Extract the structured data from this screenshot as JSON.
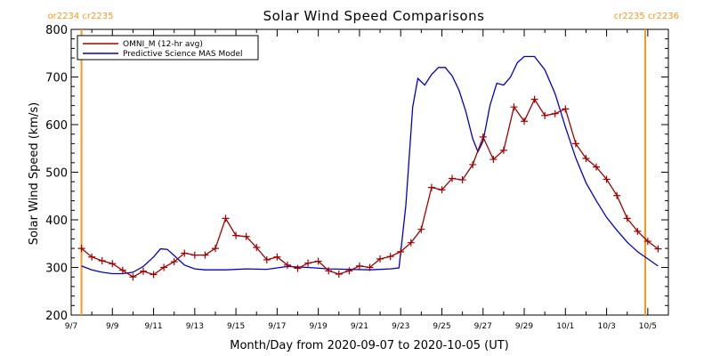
{
  "chart_data": {
    "type": "line",
    "title": "Solar Wind Speed Comparisons",
    "xlabel": "Month/Day from 2020-09-07 to 2020-10-05 (UT)",
    "ylabel": "Solar Wind Speed (km/s)",
    "xlim": [
      "2020-09-07",
      "2020-10-05"
    ],
    "ylim": [
      200,
      800
    ],
    "x_ticks": [
      {
        "date": "2020-09-07",
        "label": "9/7"
      },
      {
        "date": "2020-09-09",
        "label": "9/9"
      },
      {
        "date": "2020-09-11",
        "label": "9/11"
      },
      {
        "date": "2020-09-13",
        "label": "9/13"
      },
      {
        "date": "2020-09-15",
        "label": "9/15"
      },
      {
        "date": "2020-09-17",
        "label": "9/17"
      },
      {
        "date": "2020-09-19",
        "label": "9/19"
      },
      {
        "date": "2020-09-21",
        "label": "9/21"
      },
      {
        "date": "2020-09-23",
        "label": "9/23"
      },
      {
        "date": "2020-09-25",
        "label": "9/25"
      },
      {
        "date": "2020-09-27",
        "label": "9/27"
      },
      {
        "date": "2020-09-29",
        "label": "9/29"
      },
      {
        "date": "2020-10-01",
        "label": "10/1"
      },
      {
        "date": "2020-10-03",
        "label": "10/3"
      },
      {
        "date": "2020-10-05",
        "label": "10/5"
      }
    ],
    "y_ticks": [
      200,
      300,
      400,
      500,
      600,
      700,
      800
    ],
    "legend": {
      "position": "top-left"
    },
    "markers": [
      {
        "date": "2020-09-07 12:00",
        "left_label": "or2234",
        "right_label": "cr2235",
        "color": "#f39a1f"
      },
      {
        "date": "2020-10-04 21:00",
        "left_label": "cr2235",
        "right_label": "cr2236",
        "color": "#f39a1f"
      }
    ],
    "series": [
      {
        "name": "OMNI_M (12-hr avg)",
        "color": "#a00000",
        "marker": "plus",
        "points": [
          [
            "2020-09-07 12:00",
            340
          ],
          [
            "2020-09-08 00:00",
            322
          ],
          [
            "2020-09-08 12:00",
            314
          ],
          [
            "2020-09-09 00:00",
            308
          ],
          [
            "2020-09-09 12:00",
            294
          ],
          [
            "2020-09-10 00:00",
            280
          ],
          [
            "2020-09-10 12:00",
            292
          ],
          [
            "2020-09-11 00:00",
            285
          ],
          [
            "2020-09-11 12:00",
            300
          ],
          [
            "2020-09-12 00:00",
            312
          ],
          [
            "2020-09-12 12:00",
            330
          ],
          [
            "2020-09-13 00:00",
            326
          ],
          [
            "2020-09-13 12:00",
            326
          ],
          [
            "2020-09-14 00:00",
            340
          ],
          [
            "2020-09-14 12:00",
            403
          ],
          [
            "2020-09-15 00:00",
            367
          ],
          [
            "2020-09-15 12:00",
            365
          ],
          [
            "2020-09-16 00:00",
            342
          ],
          [
            "2020-09-16 12:00",
            316
          ],
          [
            "2020-09-17 00:00",
            322
          ],
          [
            "2020-09-17 12:00",
            305
          ],
          [
            "2020-09-18 00:00",
            298
          ],
          [
            "2020-09-18 12:00",
            309
          ],
          [
            "2020-09-19 00:00",
            313
          ],
          [
            "2020-09-19 12:00",
            293
          ],
          [
            "2020-09-20 00:00",
            286
          ],
          [
            "2020-09-20 12:00",
            293
          ],
          [
            "2020-09-21 00:00",
            303
          ],
          [
            "2020-09-21 12:00",
            300
          ],
          [
            "2020-09-22 00:00",
            318
          ],
          [
            "2020-09-22 12:00",
            323
          ],
          [
            "2020-09-23 00:00",
            333
          ],
          [
            "2020-09-23 12:00",
            352
          ],
          [
            "2020-09-24 00:00",
            380
          ],
          [
            "2020-09-24 12:00",
            468
          ],
          [
            "2020-09-25 00:00",
            463
          ],
          [
            "2020-09-25 12:00",
            487
          ],
          [
            "2020-09-26 00:00",
            484
          ],
          [
            "2020-09-26 12:00",
            516
          ],
          [
            "2020-09-27 00:00",
            574
          ],
          [
            "2020-09-27 12:00",
            527
          ],
          [
            "2020-09-28 00:00",
            546
          ],
          [
            "2020-09-28 12:00",
            637
          ],
          [
            "2020-09-29 00:00",
            607
          ],
          [
            "2020-09-29 12:00",
            653
          ],
          [
            "2020-09-30 00:00",
            619
          ],
          [
            "2020-09-30 12:00",
            623
          ],
          [
            "2020-10-01 00:00",
            633
          ],
          [
            "2020-10-01 12:00",
            560
          ],
          [
            "2020-10-02 00:00",
            529
          ],
          [
            "2020-10-02 12:00",
            511
          ],
          [
            "2020-10-03 00:00",
            485
          ],
          [
            "2020-10-03 12:00",
            451
          ],
          [
            "2020-10-04 00:00",
            403
          ],
          [
            "2020-10-04 12:00",
            376
          ],
          [
            "2020-10-05 00:00",
            355
          ],
          [
            "2020-10-05 12:00",
            339
          ]
        ]
      },
      {
        "name": "Predictive Science MAS Model",
        "color": "#0000cc",
        "marker": "none",
        "points": [
          [
            "2020-09-07 12:00",
            303
          ],
          [
            "2020-09-08 00:00",
            295
          ],
          [
            "2020-09-08 12:00",
            290
          ],
          [
            "2020-09-09 00:00",
            287
          ],
          [
            "2020-09-09 12:00",
            287
          ],
          [
            "2020-09-10 00:00",
            290
          ],
          [
            "2020-09-10 12:00",
            302
          ],
          [
            "2020-09-11 00:00",
            322
          ],
          [
            "2020-09-11 08:00",
            339
          ],
          [
            "2020-09-11 16:00",
            338
          ],
          [
            "2020-09-12 00:00",
            325
          ],
          [
            "2020-09-12 12:00",
            305
          ],
          [
            "2020-09-13 00:00",
            297
          ],
          [
            "2020-09-13 12:00",
            295
          ],
          [
            "2020-09-14 12:00",
            295
          ],
          [
            "2020-09-15 12:00",
            297
          ],
          [
            "2020-09-16 12:00",
            296
          ],
          [
            "2020-09-17 12:00",
            302
          ],
          [
            "2020-09-18 12:00",
            300
          ],
          [
            "2020-09-19 12:00",
            297
          ],
          [
            "2020-09-20 12:00",
            296
          ],
          [
            "2020-09-21 12:00",
            295
          ],
          [
            "2020-09-22 12:00",
            297
          ],
          [
            "2020-09-22 22:00",
            299
          ],
          [
            "2020-09-23 06:00",
            430
          ],
          [
            "2020-09-23 14:00",
            637
          ],
          [
            "2020-09-23 20:00",
            697
          ],
          [
            "2020-09-24 04:00",
            683
          ],
          [
            "2020-09-24 12:00",
            705
          ],
          [
            "2020-09-24 20:00",
            720
          ],
          [
            "2020-09-25 04:00",
            720
          ],
          [
            "2020-09-25 12:00",
            702
          ],
          [
            "2020-09-25 20:00",
            672
          ],
          [
            "2020-09-26 04:00",
            627
          ],
          [
            "2020-09-26 12:00",
            570
          ],
          [
            "2020-09-26 18:00",
            543
          ],
          [
            "2020-09-27 00:00",
            565
          ],
          [
            "2020-09-27 08:00",
            640
          ],
          [
            "2020-09-27 16:00",
            687
          ],
          [
            "2020-09-28 00:00",
            683
          ],
          [
            "2020-09-28 08:00",
            700
          ],
          [
            "2020-09-28 16:00",
            730
          ],
          [
            "2020-09-29 00:00",
            743
          ],
          [
            "2020-09-29 12:00",
            743
          ],
          [
            "2020-09-30 00:00",
            715
          ],
          [
            "2020-09-30 12:00",
            665
          ],
          [
            "2020-10-01 00:00",
            595
          ],
          [
            "2020-10-01 12:00",
            530
          ],
          [
            "2020-10-02 00:00",
            478
          ],
          [
            "2020-10-02 12:00",
            440
          ],
          [
            "2020-10-03 00:00",
            405
          ],
          [
            "2020-10-03 12:00",
            378
          ],
          [
            "2020-10-04 00:00",
            353
          ],
          [
            "2020-10-04 12:00",
            333
          ],
          [
            "2020-10-05 00:00",
            318
          ],
          [
            "2020-10-05 12:00",
            303
          ]
        ]
      }
    ]
  }
}
